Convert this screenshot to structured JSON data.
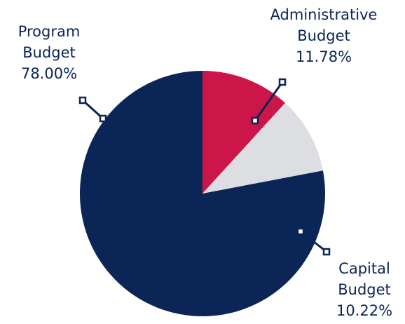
{
  "chart_data": {
    "type": "pie",
    "title": "",
    "slices": [
      {
        "key": "administrative",
        "label_lines": [
          "Administrative",
          "Budget"
        ],
        "value_text": "11.78%",
        "value": 11.78,
        "color": "#cc1549"
      },
      {
        "key": "capital",
        "label_lines": [
          "Capital",
          "Budget"
        ],
        "value_text": "10.22%",
        "value": 10.22,
        "color": "#dddee2"
      },
      {
        "key": "program",
        "label_lines": [
          "Program",
          "Budget"
        ],
        "value_text": "78.00%",
        "value": 78.0,
        "color": "#0b2557"
      }
    ],
    "leader_line_color": "#0b2557"
  }
}
